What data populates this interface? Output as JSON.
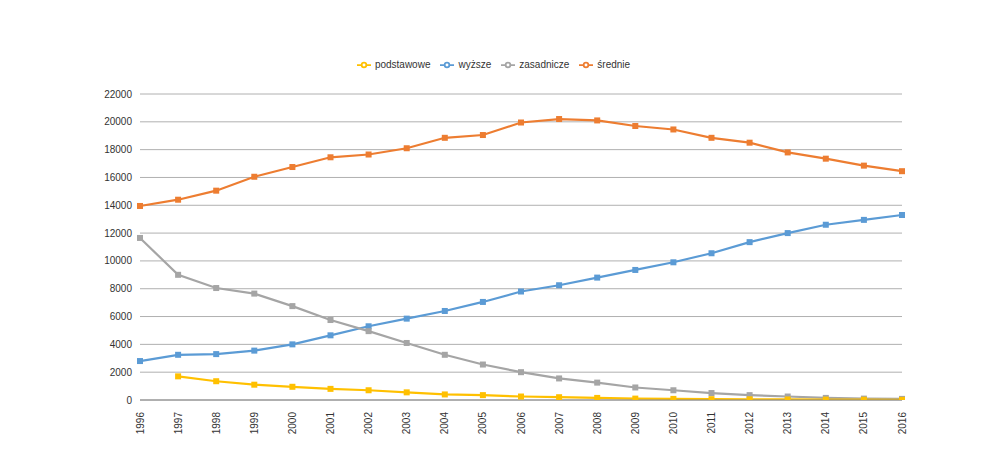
{
  "chart_data": {
    "type": "line",
    "categories": [
      "1996",
      "1997",
      "1998",
      "1999",
      "2000",
      "2001",
      "2002",
      "2003",
      "2004",
      "2005",
      "2006",
      "2007",
      "2008",
      "2009",
      "2010",
      "2011",
      "2012",
      "2013",
      "2014",
      "2015",
      "2016"
    ],
    "series": [
      {
        "name": "wyższe",
        "color": "#5b9bd5",
        "values": [
          2800,
          3250,
          3300,
          3550,
          4000,
          4650,
          5300,
          5850,
          6400,
          7050,
          7800,
          8250,
          8800,
          9350,
          9900,
          10550,
          11350,
          12000,
          12600,
          12950,
          13300
        ]
      },
      {
        "name": "średnie",
        "color": "#ed7d31",
        "values": [
          13950,
          14400,
          15050,
          16050,
          16750,
          17450,
          17650,
          18100,
          18850,
          19050,
          19950,
          20200,
          20100,
          19700,
          19450,
          18850,
          18500,
          17800,
          17350,
          16850,
          16450
        ]
      },
      {
        "name": "zasadnicze",
        "color": "#a5a5a5",
        "values": [
          11650,
          9000,
          8050,
          7650,
          6750,
          5750,
          4950,
          4100,
          3250,
          2550,
          2000,
          1550,
          1250,
          900,
          700,
          500,
          350,
          250,
          150,
          100,
          80
        ]
      },
      {
        "name": "podstawowe",
        "color": "#ffc000",
        "values": [
          null,
          1700,
          1350,
          1100,
          950,
          800,
          700,
          550,
          400,
          350,
          250,
          200,
          150,
          100,
          80,
          60,
          50,
          40,
          30,
          20,
          10
        ]
      }
    ],
    "ylim": [
      0,
      22000
    ],
    "yticks": [
      0,
      2000,
      4000,
      6000,
      8000,
      10000,
      12000,
      14000,
      16000,
      18000,
      20000,
      22000
    ],
    "grid": true,
    "legend": "top",
    "marker": "square"
  }
}
